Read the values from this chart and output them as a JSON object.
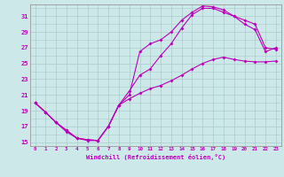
{
  "background_color": "#cce8e8",
  "grid_color": "#aacccc",
  "line_color": "#bb00bb",
  "xlabel": "Windchill (Refroidissement éolien,°C)",
  "xlim": [
    -0.5,
    23.5
  ],
  "ylim": [
    14.5,
    32.5
  ],
  "yticks": [
    15,
    17,
    19,
    21,
    23,
    25,
    27,
    29,
    31
  ],
  "xticks": [
    0,
    1,
    2,
    3,
    4,
    5,
    6,
    7,
    8,
    9,
    10,
    11,
    12,
    13,
    14,
    15,
    16,
    17,
    18,
    19,
    20,
    21,
    22,
    23
  ],
  "curve1_x": [
    0,
    1,
    2,
    3,
    4,
    5,
    6,
    7,
    8,
    9,
    10,
    11,
    12,
    13,
    14,
    15,
    16,
    17,
    18,
    19,
    20,
    21,
    22,
    23
  ],
  "curve1_y": [
    20.0,
    18.8,
    17.5,
    16.5,
    15.5,
    15.3,
    15.2,
    17.0,
    19.7,
    20.5,
    21.2,
    21.8,
    22.2,
    22.8,
    23.5,
    24.3,
    25.0,
    25.5,
    25.8,
    25.5,
    25.3,
    25.2,
    25.2,
    25.3
  ],
  "curve2_x": [
    0,
    1,
    2,
    3,
    4,
    5,
    6,
    7,
    8,
    9,
    10,
    11,
    12,
    13,
    14,
    15,
    16,
    17,
    18,
    19,
    20,
    21,
    22,
    23
  ],
  "curve2_y": [
    20.0,
    18.8,
    17.5,
    16.5,
    15.5,
    15.3,
    15.2,
    17.0,
    19.7,
    21.5,
    23.5,
    24.3,
    26.0,
    27.5,
    29.5,
    31.2,
    32.0,
    32.0,
    31.5,
    31.0,
    30.0,
    29.3,
    26.5,
    27.0
  ],
  "curve3_x": [
    0,
    1,
    2,
    3,
    4,
    5,
    6,
    7,
    8,
    9,
    10,
    11,
    12,
    13,
    14,
    15,
    16,
    17,
    18,
    19,
    20,
    21,
    22,
    23
  ],
  "curve3_y": [
    20.0,
    18.8,
    17.5,
    16.3,
    15.5,
    15.2,
    15.2,
    17.0,
    19.7,
    21.0,
    26.5,
    27.5,
    28.0,
    29.0,
    30.5,
    31.5,
    32.3,
    32.2,
    31.8,
    31.0,
    30.5,
    30.0,
    27.0,
    26.8
  ]
}
